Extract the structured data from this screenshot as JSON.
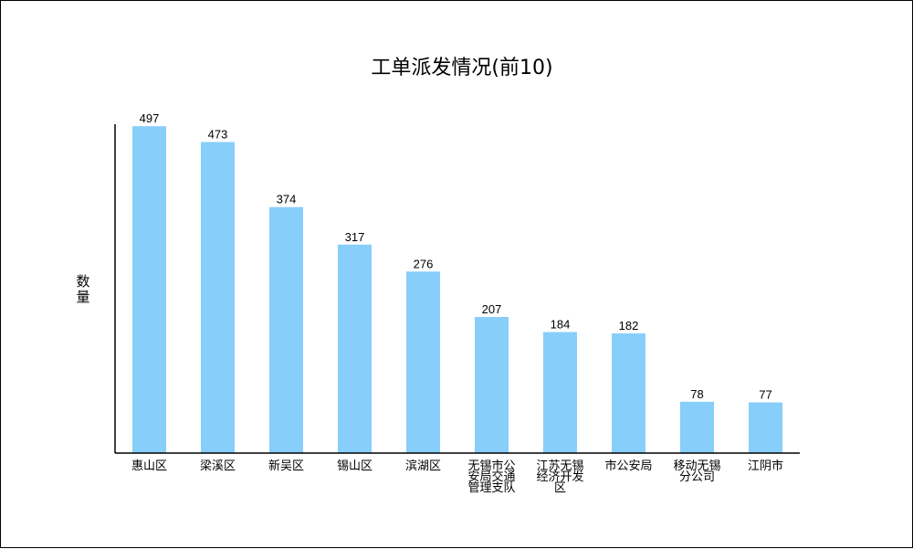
{
  "chart_data": {
    "type": "bar",
    "title": "工单派发情况(前10)",
    "ylabel": "数量",
    "xlabel": "",
    "categories": [
      "惠山区",
      "梁溪区",
      "新吴区",
      "锡山区",
      "滨湖区",
      "无锡市公安局交通管理支队",
      "江苏无锡经济开发区",
      "市公安局",
      "移动无锡分公司",
      "江阴市"
    ],
    "category_lines": [
      [
        "惠山区"
      ],
      [
        "梁溪区"
      ],
      [
        "新吴区"
      ],
      [
        "锡山区"
      ],
      [
        "滨湖区"
      ],
      [
        "无锡市公",
        "安局交通",
        "管理支队"
      ],
      [
        "江苏无锡",
        "经济开发",
        "区"
      ],
      [
        "市公安局"
      ],
      [
        "移动无锡",
        "分公司"
      ],
      [
        "江阴市"
      ]
    ],
    "values": [
      497,
      473,
      374,
      317,
      276,
      207,
      184,
      182,
      78,
      77
    ],
    "ylim": [
      0,
      500
    ],
    "grid": false,
    "legend": "none",
    "bar_color": "#87CEFA",
    "axis_color": "#000000"
  }
}
